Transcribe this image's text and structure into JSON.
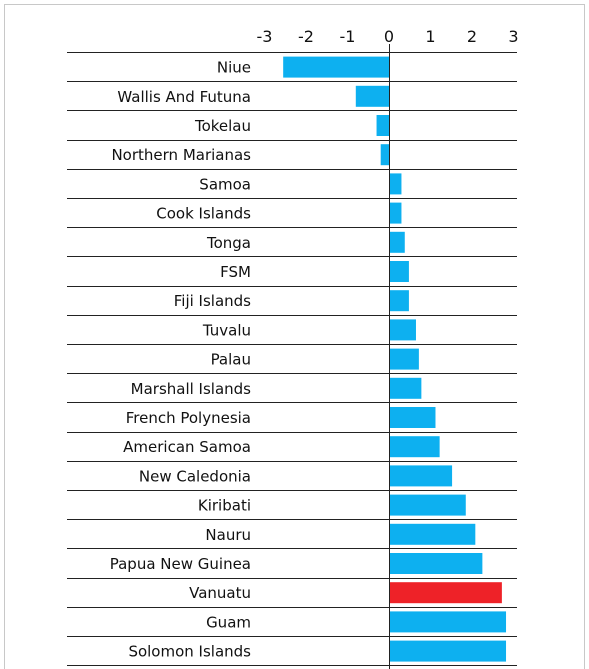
{
  "chart_data": {
    "type": "bar",
    "orientation": "horizontal",
    "title": "",
    "xlabel": "",
    "ylabel": "",
    "xlim": [
      -3,
      3
    ],
    "xticks": [
      -3,
      -2,
      -1,
      0,
      1,
      2,
      3
    ],
    "xtick_labels": [
      "-3",
      "-2",
      "-1",
      "0",
      "1",
      "2",
      "3"
    ],
    "grid": true,
    "legend": "none",
    "categories": [
      "Niue",
      "Wallis And Futuna",
      "Tokelau",
      "Northern Marianas",
      "Samoa",
      "Cook Islands",
      "Tonga",
      "FSM",
      "Fiji Islands",
      "Tuvalu",
      "Palau",
      "Marshall Islands",
      "French Polynesia",
      "American Samoa",
      "New Caledonia",
      "Kiribati",
      "Nauru",
      "Papua New Guinea",
      "Vanuatu",
      "Guam",
      "Solomon Islands"
    ],
    "values": [
      -2.55,
      -0.8,
      -0.3,
      -0.2,
      0.3,
      0.3,
      0.38,
      0.48,
      0.48,
      0.65,
      0.72,
      0.78,
      1.12,
      1.22,
      1.52,
      1.85,
      2.08,
      2.25,
      2.72,
      2.82,
      2.82
    ],
    "colors": {
      "default": "#0db0f0",
      "highlight": "#ee2228",
      "grid": "#222222",
      "border": "#c8c8c8"
    },
    "highlight_category": "Vanuatu"
  }
}
